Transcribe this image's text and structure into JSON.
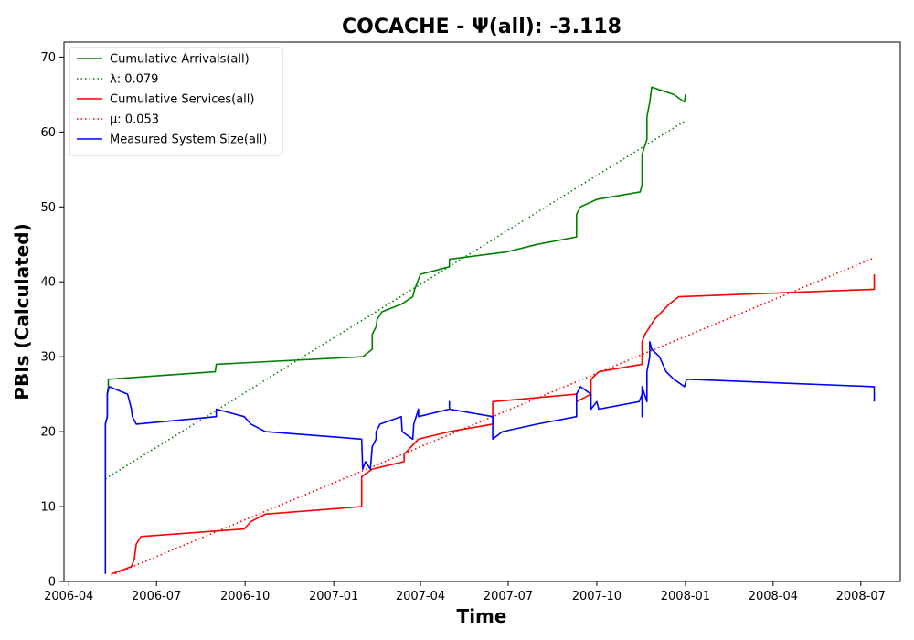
{
  "chart_data": {
    "type": "line",
    "title": "COCACHE -  Ψ(all): -3.118",
    "xlabel": "Time",
    "ylabel": "PBIs (Calculated)",
    "xlim": [
      "2006-03-27",
      "2008-08-11"
    ],
    "ylim": [
      0,
      72
    ],
    "xticks": [
      "2006-04",
      "2006-07",
      "2006-10",
      "2007-01",
      "2007-04",
      "2007-07",
      "2007-10",
      "2008-01",
      "2008-04",
      "2008-07"
    ],
    "yticks": [
      0,
      10,
      20,
      30,
      40,
      50,
      60,
      70
    ],
    "grid": false,
    "legend_position": "top-left",
    "series": [
      {
        "name": "Cumulative Arrivals(all)",
        "color": "#008000",
        "style": "solid",
        "points": [
          [
            "2006-05-09",
            14
          ],
          [
            "2006-05-09",
            21
          ],
          [
            "2006-05-11",
            22
          ],
          [
            "2006-05-11",
            25
          ],
          [
            "2006-05-12",
            26
          ],
          [
            "2006-05-12",
            27
          ],
          [
            "2006-08-31",
            28
          ],
          [
            "2006-09-01",
            29
          ],
          [
            "2007-01-31",
            30
          ],
          [
            "2007-02-10",
            31
          ],
          [
            "2007-02-10",
            33
          ],
          [
            "2007-02-14",
            34
          ],
          [
            "2007-02-15",
            35
          ],
          [
            "2007-02-20",
            36
          ],
          [
            "2007-03-12",
            37
          ],
          [
            "2007-03-24",
            38
          ],
          [
            "2007-03-26",
            39
          ],
          [
            "2007-04-01",
            41
          ],
          [
            "2007-05-01",
            42
          ],
          [
            "2007-05-01",
            43
          ],
          [
            "2007-06-30",
            44
          ],
          [
            "2007-07-31",
            45
          ],
          [
            "2007-09-10",
            46
          ],
          [
            "2007-09-10",
            49
          ],
          [
            "2007-09-14",
            50
          ],
          [
            "2007-10-01",
            51
          ],
          [
            "2007-11-15",
            52
          ],
          [
            "2007-11-17",
            53
          ],
          [
            "2007-11-17",
            57
          ],
          [
            "2007-11-22",
            59
          ],
          [
            "2007-11-22",
            62
          ],
          [
            "2007-11-25",
            64
          ],
          [
            "2007-11-27",
            66
          ],
          [
            "2007-12-20",
            65
          ],
          [
            "2007-12-31",
            64
          ],
          [
            "2008-01-01",
            65
          ]
        ]
      },
      {
        "name": "λ: 0.079",
        "color": "#008000",
        "style": "dotted",
        "points": [
          [
            "2006-05-09",
            13.7
          ],
          [
            "2008-01-01",
            61.5
          ]
        ]
      },
      {
        "name": "Cumulative Services(all)",
        "color": "#ff0000",
        "style": "solid",
        "points": [
          [
            "2006-05-15",
            1
          ],
          [
            "2006-05-28",
            1.6
          ],
          [
            "2006-06-05",
            2
          ],
          [
            "2006-06-08",
            3
          ],
          [
            "2006-06-10",
            5
          ],
          [
            "2006-06-15",
            6
          ],
          [
            "2006-09-30",
            7
          ],
          [
            "2006-10-07",
            8
          ],
          [
            "2006-10-22",
            9
          ],
          [
            "2007-01-30",
            10
          ],
          [
            "2007-01-30",
            14
          ],
          [
            "2007-02-10",
            15
          ],
          [
            "2007-03-15",
            16
          ],
          [
            "2007-03-15",
            17
          ],
          [
            "2007-03-30",
            19
          ],
          [
            "2007-05-01",
            20
          ],
          [
            "2007-06-15",
            21
          ],
          [
            "2007-06-15",
            24
          ],
          [
            "2007-09-10",
            25
          ],
          [
            "2007-09-10",
            24
          ],
          [
            "2007-09-25",
            25
          ],
          [
            "2007-09-25",
            27
          ],
          [
            "2007-10-03",
            28
          ],
          [
            "2007-11-17",
            29
          ],
          [
            "2007-11-17",
            32
          ],
          [
            "2007-11-20",
            33
          ],
          [
            "2007-11-30",
            35
          ],
          [
            "2007-12-15",
            37
          ],
          [
            "2007-12-25",
            38
          ],
          [
            "2008-07-15",
            39
          ],
          [
            "2008-07-15",
            41
          ]
        ]
      },
      {
        "name": "μ: 0.053",
        "color": "#ff0000",
        "style": "dotted",
        "points": [
          [
            "2006-05-15",
            0.8
          ],
          [
            "2008-07-15",
            43.2
          ]
        ]
      },
      {
        "name": "Measured System Size(all)",
        "color": "#0000ff",
        "style": "solid",
        "points": [
          [
            "2006-05-09",
            1
          ],
          [
            "2006-05-09",
            21
          ],
          [
            "2006-05-11",
            22
          ],
          [
            "2006-05-11",
            25
          ],
          [
            "2006-05-13",
            26
          ],
          [
            "2006-06-01",
            25
          ],
          [
            "2006-06-05",
            23
          ],
          [
            "2006-06-06",
            22
          ],
          [
            "2006-06-10",
            21
          ],
          [
            "2006-09-01",
            22
          ],
          [
            "2006-09-01",
            23
          ],
          [
            "2006-09-30",
            22
          ],
          [
            "2006-10-07",
            21
          ],
          [
            "2006-10-22",
            20
          ],
          [
            "2007-01-30",
            19
          ],
          [
            "2007-01-31",
            15
          ],
          [
            "2007-02-03",
            16
          ],
          [
            "2007-02-08",
            15
          ],
          [
            "2007-02-10",
            18
          ],
          [
            "2007-02-14",
            19
          ],
          [
            "2007-02-14",
            20
          ],
          [
            "2007-02-18",
            21
          ],
          [
            "2007-03-12",
            22
          ],
          [
            "2007-03-13",
            20
          ],
          [
            "2007-03-24",
            19
          ],
          [
            "2007-03-25",
            21
          ],
          [
            "2007-03-30",
            23
          ],
          [
            "2007-03-30",
            22
          ],
          [
            "2007-05-01",
            23
          ],
          [
            "2007-05-01",
            24
          ],
          [
            "2007-05-01",
            23
          ],
          [
            "2007-06-15",
            22
          ],
          [
            "2007-06-15",
            19
          ],
          [
            "2007-06-25",
            20
          ],
          [
            "2007-07-31",
            21
          ],
          [
            "2007-09-10",
            22
          ],
          [
            "2007-09-10",
            25
          ],
          [
            "2007-09-14",
            26
          ],
          [
            "2007-09-25",
            25
          ],
          [
            "2007-09-25",
            23
          ],
          [
            "2007-10-01",
            24
          ],
          [
            "2007-10-03",
            23
          ],
          [
            "2007-11-14",
            24
          ],
          [
            "2007-11-17",
            25
          ],
          [
            "2007-11-17",
            22
          ],
          [
            "2007-11-17",
            26
          ],
          [
            "2007-11-22",
            24
          ],
          [
            "2007-11-22",
            28
          ],
          [
            "2007-11-25",
            30
          ],
          [
            "2007-11-25",
            32
          ],
          [
            "2007-11-27",
            31
          ],
          [
            "2007-12-05",
            30
          ],
          [
            "2007-12-12",
            28
          ],
          [
            "2007-12-20",
            27
          ],
          [
            "2007-12-31",
            26
          ],
          [
            "2008-01-02",
            27
          ],
          [
            "2008-07-15",
            26
          ],
          [
            "2008-07-15",
            24
          ]
        ]
      }
    ]
  }
}
